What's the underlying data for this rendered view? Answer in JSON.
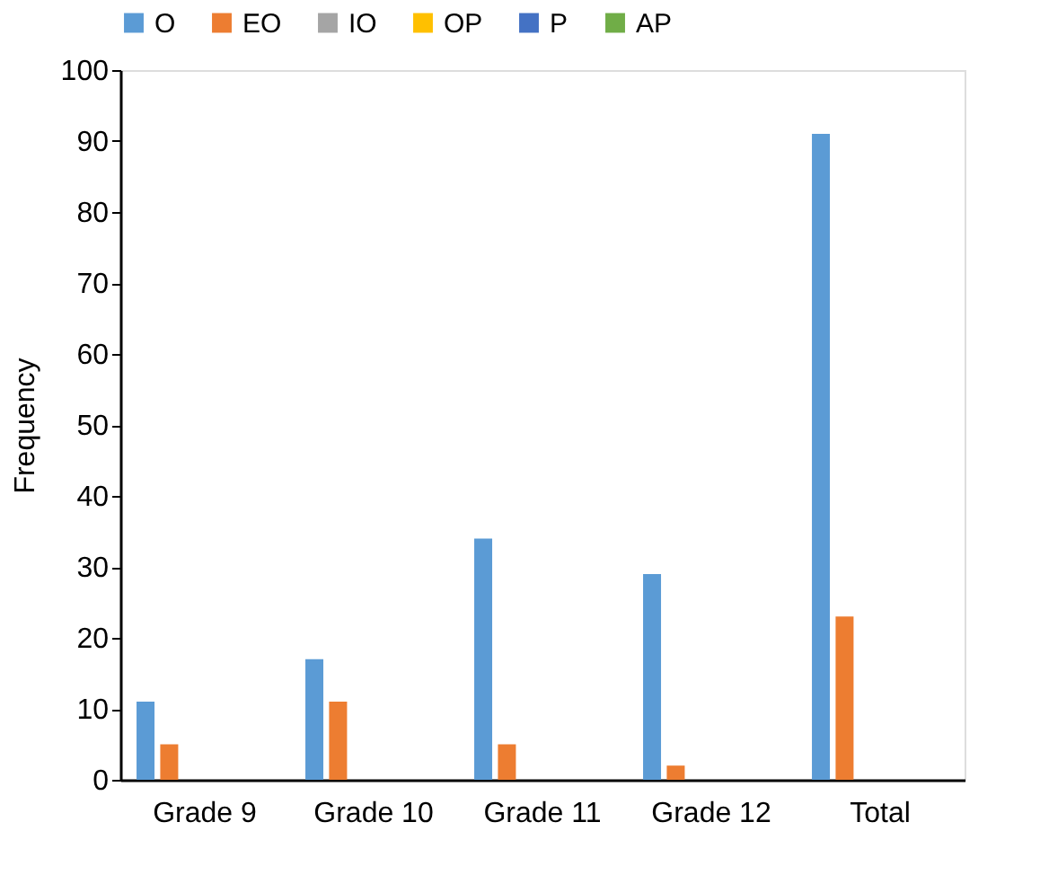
{
  "chart_data": {
    "type": "bar",
    "ylabel": "Frequency",
    "categories": [
      "Grade 9",
      "Grade 10",
      "Grade 11",
      "Grade 12",
      "Total"
    ],
    "series": [
      {
        "name": "O",
        "color": "#5b9bd5",
        "values": [
          11,
          17,
          34,
          29,
          91
        ]
      },
      {
        "name": "EO",
        "color": "#ed7d31",
        "values": [
          5,
          11,
          5,
          2,
          23
        ]
      },
      {
        "name": "IO",
        "color": "#a5a5a5",
        "values": [
          0,
          0,
          0,
          0,
          0
        ]
      },
      {
        "name": "OP",
        "color": "#ffc000",
        "values": [
          0,
          0,
          0,
          0,
          0
        ]
      },
      {
        "name": "P",
        "color": "#4472c4",
        "values": [
          0,
          0,
          0,
          0,
          0
        ]
      },
      {
        "name": "AP",
        "color": "#70ad47",
        "values": [
          0,
          0,
          0,
          0,
          0
        ]
      }
    ],
    "ylim": [
      0,
      100
    ],
    "yticks": [
      0,
      10,
      20,
      30,
      40,
      50,
      60,
      70,
      80,
      90,
      100
    ],
    "grid": false,
    "legend": "top"
  }
}
